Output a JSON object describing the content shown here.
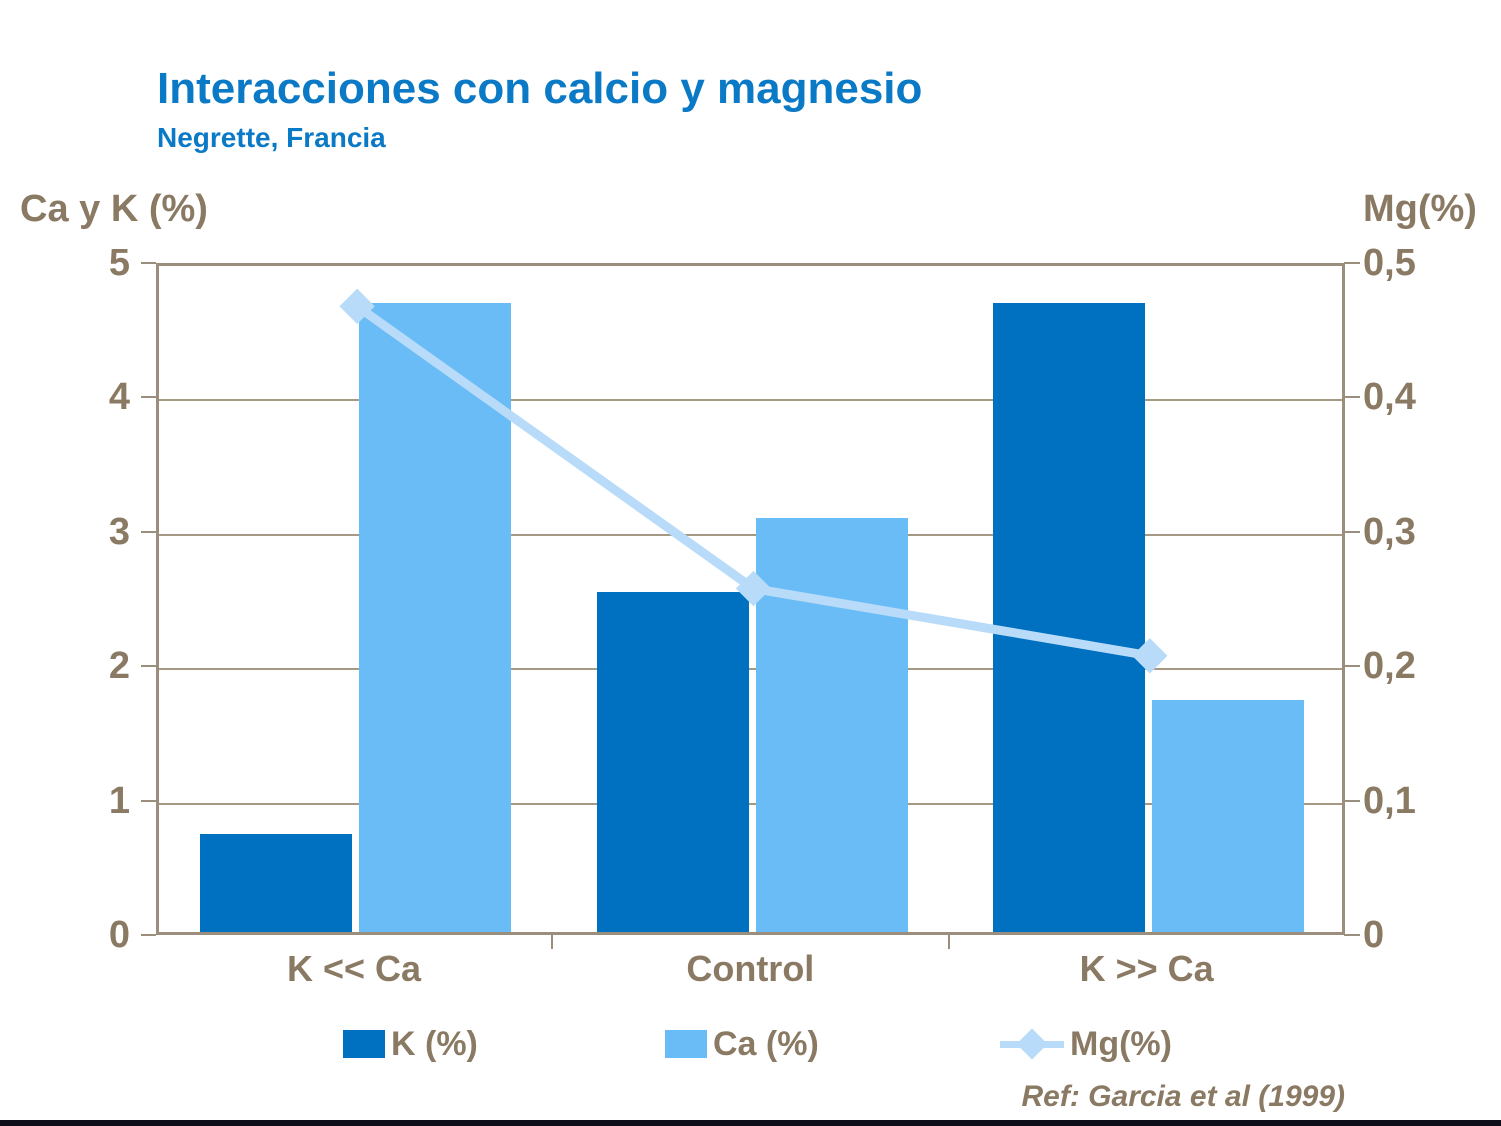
{
  "page": {
    "title": "Interacciones con calcio y magnesio",
    "subtitle": "Negrette,  Francia",
    "reference": "Ref: Garcia et al (1999)"
  },
  "colors": {
    "title_blue": "#0b7ac6",
    "axis_text_brown": "#8a7a63",
    "grid_brown": "#a69984",
    "border_brown": "#9c8e7d",
    "k_bar": "#0070c0",
    "ca_bar": "#69bcf5",
    "mg_line": "#b7dbf8",
    "bottom_strip": "#0e0e1b"
  },
  "chart_data": {
    "type": "bar",
    "subtype": "dual-axis bars with line overlay",
    "categories": [
      "K << Ca",
      "Control",
      "K >> Ca"
    ],
    "series": [
      {
        "name": "K (%)",
        "type": "bar",
        "axis": "left",
        "color": "#0070c0",
        "values": [
          0.75,
          2.55,
          4.7
        ]
      },
      {
        "name": "Ca (%)",
        "type": "bar",
        "axis": "left",
        "color": "#69bcf5",
        "values": [
          4.7,
          3.1,
          1.75
        ]
      },
      {
        "name": "Mg(%)",
        "type": "line",
        "axis": "right",
        "color": "#b7dbf8",
        "values": [
          0.47,
          0.26,
          0.21
        ]
      }
    ],
    "left_axis": {
      "title": "Ca y K (%)",
      "min": 0,
      "max": 5,
      "tick_labels": [
        "5",
        "4",
        "3",
        "2",
        "1",
        "0"
      ]
    },
    "right_axis": {
      "title": "Mg(%)",
      "min": 0,
      "max": 0.5,
      "tick_labels": [
        "0,5",
        "0,4",
        "0,3",
        "0,2",
        "0,1",
        "0"
      ]
    },
    "grid": "horizontal gridlines every 1.0 (left scale)",
    "legend_position": "bottom"
  }
}
